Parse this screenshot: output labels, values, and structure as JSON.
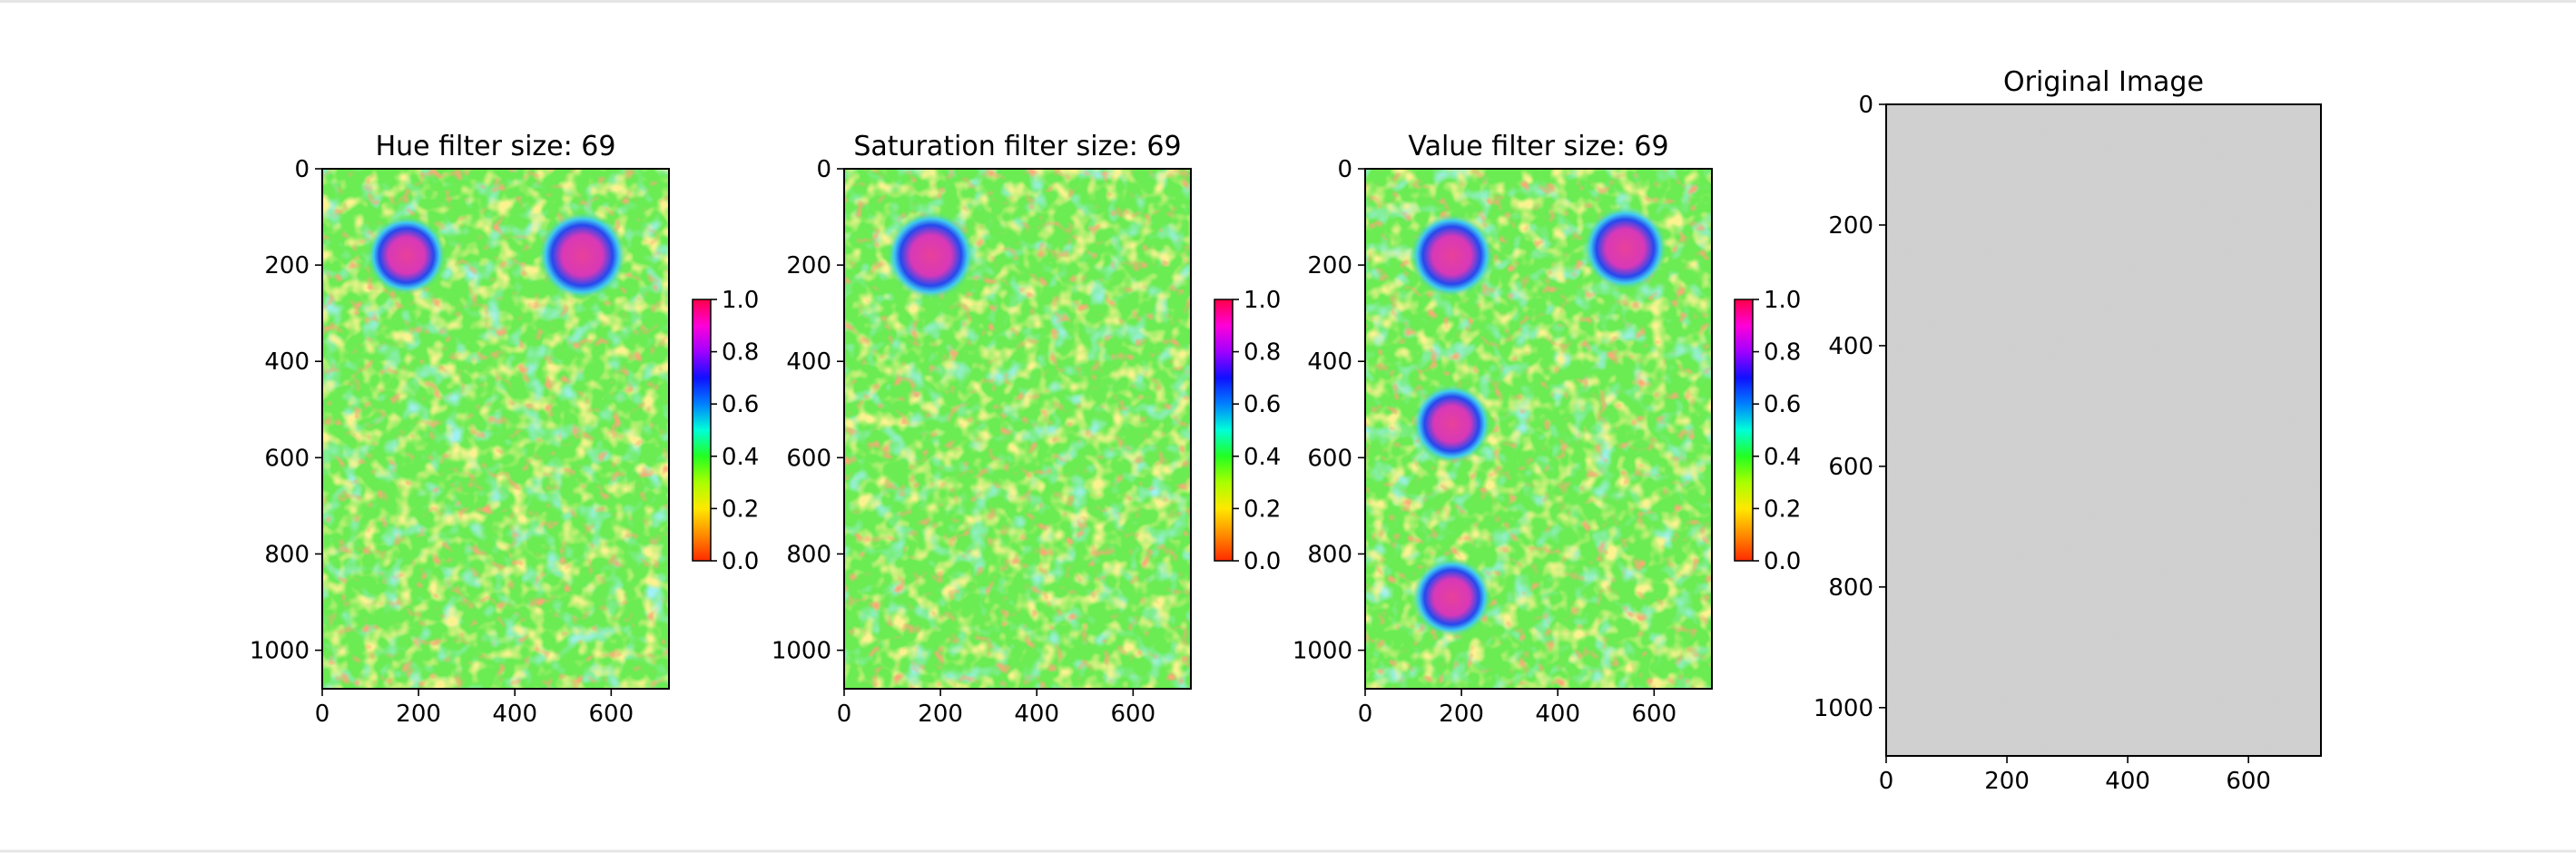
{
  "chart_data": [
    {
      "type": "heatmap",
      "title": "Hue filter size: 69",
      "xticks": [
        0,
        200,
        400,
        600
      ],
      "yticks": [
        0,
        200,
        400,
        600,
        800,
        1000
      ],
      "xlim": [
        0,
        720
      ],
      "ylim": [
        1080,
        0
      ],
      "colormap": "gist_rainbow (reversed)",
      "colorbar": {
        "ticks": [
          "0.0",
          "0.2",
          "0.4",
          "0.6",
          "0.8",
          "1.0"
        ],
        "range": [
          0,
          1
        ]
      },
      "hotspots": [
        {
          "x": 175,
          "y": 180,
          "r": 52,
          "value": 0.92
        },
        {
          "x": 540,
          "y": 180,
          "r": 58,
          "value": 0.92
        }
      ]
    },
    {
      "type": "heatmap",
      "title": "Saturation filter size: 69",
      "xticks": [
        0,
        200,
        400,
        600
      ],
      "yticks": [
        0,
        200,
        400,
        600,
        800,
        1000
      ],
      "xlim": [
        0,
        720
      ],
      "ylim": [
        1080,
        0
      ],
      "colormap": "gist_rainbow (reversed)",
      "colorbar": {
        "ticks": [
          "0.0",
          "0.2",
          "0.4",
          "0.6",
          "0.8",
          "1.0"
        ],
        "range": [
          0,
          1
        ]
      },
      "hotspots": [
        {
          "x": 180,
          "y": 180,
          "r": 58,
          "value": 0.92
        }
      ]
    },
    {
      "type": "heatmap",
      "title": "Value filter size: 69",
      "xticks": [
        0,
        200,
        400,
        600
      ],
      "yticks": [
        0,
        200,
        400,
        600,
        800,
        1000
      ],
      "xlim": [
        0,
        720
      ],
      "ylim": [
        1080,
        0
      ],
      "colormap": "gist_rainbow (reversed)",
      "colorbar": {
        "ticks": [
          "0.0",
          "0.2",
          "0.4",
          "0.6",
          "0.8",
          "1.0"
        ],
        "range": [
          0,
          1
        ]
      },
      "hotspots": [
        {
          "x": 180,
          "y": 180,
          "r": 55,
          "value": 0.92
        },
        {
          "x": 540,
          "y": 165,
          "r": 55,
          "value": 0.92
        },
        {
          "x": 180,
          "y": 530,
          "r": 52,
          "value": 0.92
        },
        {
          "x": 180,
          "y": 890,
          "r": 52,
          "value": 0.92
        }
      ]
    },
    {
      "type": "image",
      "title": "Original Image",
      "xticks": [
        0,
        200,
        400,
        600
      ],
      "yticks": [
        0,
        200,
        400,
        600,
        800,
        1000
      ],
      "xlim": [
        0,
        720
      ],
      "ylim": [
        1080,
        0
      ],
      "fill_color": "#cdcdcd"
    }
  ],
  "colors": {
    "field": "#6aec52",
    "hotspot": "#e0409e",
    "ring": "#2f54e8",
    "halo": "#4cdcee",
    "warm": "#f8e84a",
    "hot": "#f05028"
  }
}
